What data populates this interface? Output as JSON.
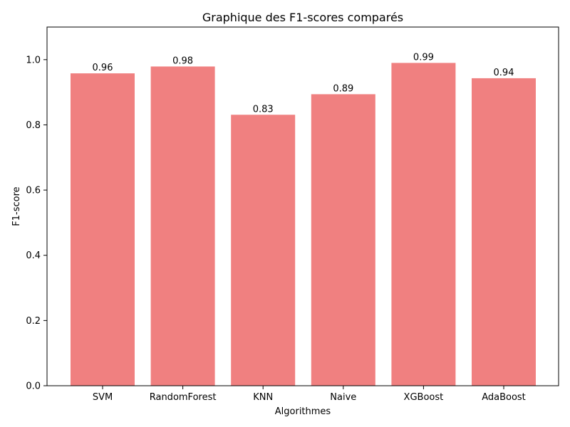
{
  "chart_data": {
    "type": "bar",
    "title": "Graphique des F1-scores comparés",
    "xlabel": "Algorithmes",
    "ylabel": "F1-score",
    "categories": [
      "SVM",
      "RandomForest",
      "KNN",
      "Naive",
      "XGBoost",
      "AdaBoost"
    ],
    "values": [
      0.958,
      0.979,
      0.831,
      0.894,
      0.99,
      0.943
    ],
    "value_labels": [
      "0.96",
      "0.98",
      "0.83",
      "0.89",
      "0.99",
      "0.94"
    ],
    "ylim": [
      0,
      1.1
    ],
    "yticks": [
      0.0,
      0.2,
      0.4,
      0.6,
      0.8,
      1.0
    ],
    "ytick_labels": [
      "0.0",
      "0.2",
      "0.4",
      "0.6",
      "0.8",
      "1.0"
    ],
    "bar_color": "#f08080",
    "grid": false,
    "legend": "none"
  }
}
